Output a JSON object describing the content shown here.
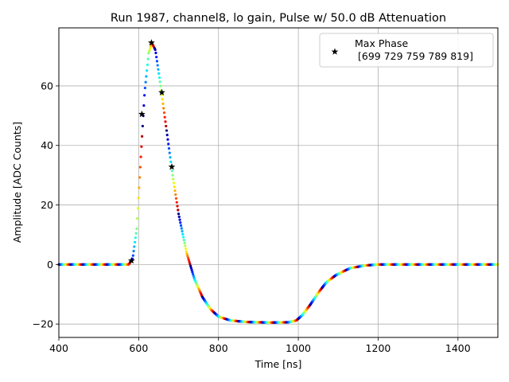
{
  "chart_data": {
    "type": "scatter",
    "title": "Run 1987, channel8, lo gain, Pulse w/ 50.0 dB Attenuation",
    "xlabel": "Time [ns]",
    "ylabel": "Amplitude [ADC Counts]",
    "xlim": [
      400,
      1500
    ],
    "ylim": [
      -24.5,
      79.5
    ],
    "xticks": [
      400,
      600,
      800,
      1000,
      1200,
      1400
    ],
    "yticks": [
      -20,
      0,
      20,
      40,
      60
    ],
    "ytick_labels": [
      "−20",
      "0",
      "20",
      "40",
      "60"
    ],
    "grid": true,
    "legend": {
      "placement": "top-right",
      "entries": [
        {
          "marker": "star",
          "label": "Max Phase",
          "sublabel": "[699 729 759 789 819]"
        }
      ]
    },
    "colormap": "jet",
    "pulse_curve": [
      [
        400,
        0.0
      ],
      [
        575,
        0.0
      ],
      [
        585,
        2.0
      ],
      [
        595,
        12.0
      ],
      [
        605,
        35.0
      ],
      [
        615,
        58.0
      ],
      [
        625,
        71.0
      ],
      [
        633,
        74.5
      ],
      [
        642,
        72.0
      ],
      [
        655,
        60.0
      ],
      [
        670,
        45.0
      ],
      [
        685,
        30.0
      ],
      [
        700,
        17.0
      ],
      [
        720,
        4.0
      ],
      [
        740,
        -5.0
      ],
      [
        760,
        -11.0
      ],
      [
        780,
        -15.0
      ],
      [
        800,
        -17.5
      ],
      [
        830,
        -18.8
      ],
      [
        870,
        -19.3
      ],
      [
        930,
        -19.5
      ],
      [
        975,
        -19.4
      ],
      [
        995,
        -18.8
      ],
      [
        1010,
        -17.0
      ],
      [
        1030,
        -13.5
      ],
      [
        1050,
        -9.5
      ],
      [
        1070,
        -6.0
      ],
      [
        1095,
        -3.5
      ],
      [
        1130,
        -1.2
      ],
      [
        1170,
        -0.3
      ],
      [
        1200,
        0.0
      ],
      [
        1500,
        0.0
      ]
    ],
    "max_phase_points": {
      "x": [
        582,
        608,
        632,
        658,
        683
      ],
      "y": [
        1.3,
        50.5,
        74.5,
        57.8,
        32.8
      ]
    }
  }
}
